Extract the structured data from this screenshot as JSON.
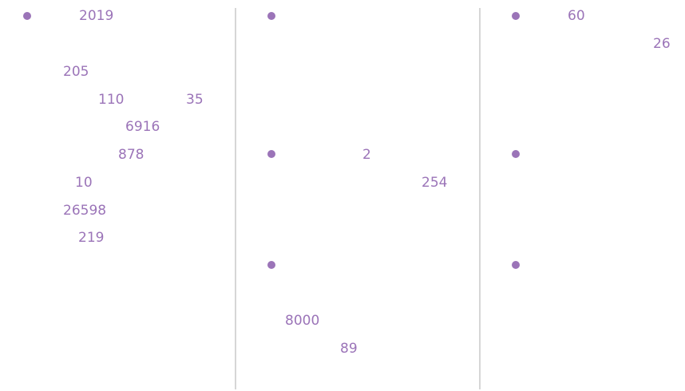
{
  "columns": [
    {
      "texts": [
        "2019",
        "205",
        "110",
        "35",
        "6916",
        "878",
        "10",
        "26598",
        "219"
      ]
    },
    {
      "texts": [
        "2",
        "254",
        "8000",
        "89"
      ]
    },
    {
      "texts": [
        "60",
        "26"
      ]
    }
  ]
}
